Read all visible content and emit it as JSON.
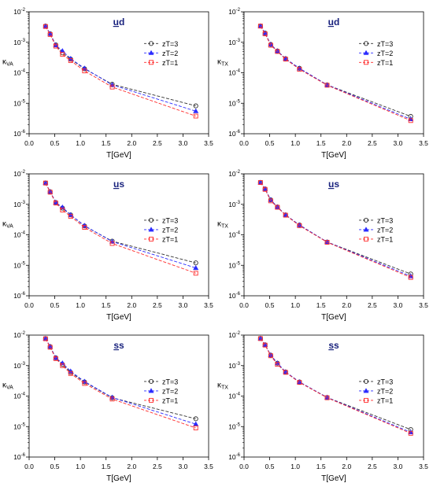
{
  "colors": {
    "zT3": "#333333",
    "zT2": "#2b2bff",
    "zT1": "#ff2b2b",
    "title": "#1a237e",
    "axis": "#000000"
  },
  "chart_data": [
    {
      "type": "line",
      "title": "ud",
      "title_underline": "u",
      "ylabel_main": "κ",
      "ylabel_sub": "VA",
      "xlabel": "T[GeV]",
      "xlim": [
        0,
        3.5
      ],
      "x_ticks": [
        "0.0",
        "0.5",
        "1.0",
        "1.5",
        "2.0",
        "2.5",
        "3.0",
        "3.5"
      ],
      "ylim_exp": [
        -6,
        -2
      ],
      "y_scale": "log",
      "legend_position": "upper-right-middle",
      "x": [
        0.32,
        0.41,
        0.52,
        0.65,
        0.81,
        1.08,
        1.62,
        3.25
      ],
      "series": [
        {
          "name": "zT=3",
          "marker": "circle",
          "values": [
            0.0034,
            0.0019,
            0.00082,
            0.00045,
            0.00028,
            0.000135,
            4.2e-05,
            8.2e-06
          ]
        },
        {
          "name": "zT=2",
          "marker": "triangle",
          "values": [
            0.0034,
            0.0019,
            0.0008,
            0.00052,
            0.00029,
            0.00014,
            4e-05,
            5.5e-06
          ]
        },
        {
          "name": "zT=1",
          "marker": "square",
          "values": [
            0.0033,
            0.0018,
            0.00075,
            0.0004,
            0.00025,
            0.000115,
            3.4e-05,
            3.8e-06
          ]
        }
      ]
    },
    {
      "type": "line",
      "title": "ud",
      "title_underline": "u",
      "ylabel_main": "κ",
      "ylabel_sub": "TX",
      "xlabel": "T[GeV]",
      "xlim": [
        0,
        3.5
      ],
      "x_ticks": [
        "0.0",
        "0.5",
        "1.0",
        "1.5",
        "2.0",
        "2.5",
        "3.0",
        "3.5"
      ],
      "ylim_exp": [
        -6,
        -2
      ],
      "y_scale": "log",
      "legend_position": "upper-right-middle",
      "x": [
        0.32,
        0.41,
        0.52,
        0.65,
        0.81,
        1.08,
        1.62,
        3.25
      ],
      "series": [
        {
          "name": "zT=3",
          "marker": "circle",
          "values": [
            0.0034,
            0.002,
            0.00085,
            0.00052,
            0.00029,
            0.00014,
            4e-05,
            3.7e-06
          ]
        },
        {
          "name": "zT=2",
          "marker": "triangle",
          "values": [
            0.0034,
            0.002,
            0.00085,
            0.00052,
            0.00029,
            0.00014,
            4e-05,
            3e-06
          ]
        },
        {
          "name": "zT=1",
          "marker": "square",
          "values": [
            0.0034,
            0.0019,
            0.0008,
            0.0005,
            0.00028,
            0.00013,
            3.9e-05,
            2.7e-06
          ]
        }
      ]
    },
    {
      "type": "line",
      "title": "us",
      "title_underline": "u",
      "ylabel_main": "κ",
      "ylabel_sub": "VA",
      "xlabel": "T[GeV]",
      "xlim": [
        0,
        3.5
      ],
      "x_ticks": [
        "0.0",
        "0.5",
        "1.0",
        "1.5",
        "2.0",
        "2.5",
        "3.0",
        "3.5"
      ],
      "ylim_exp": [
        -6,
        -2
      ],
      "y_scale": "log",
      "legend_position": "middle-right",
      "x": [
        0.32,
        0.41,
        0.52,
        0.65,
        0.81,
        1.08,
        1.62,
        3.25
      ],
      "series": [
        {
          "name": "zT=3",
          "marker": "circle",
          "values": [
            0.005,
            0.0026,
            0.00115,
            0.00075,
            0.00045,
            0.000195,
            6.2e-05,
            1.2e-05
          ]
        },
        {
          "name": "zT=2",
          "marker": "triangle",
          "values": [
            0.005,
            0.0026,
            0.00115,
            0.0008,
            0.00045,
            0.0002,
            6e-05,
            8.2e-06
          ]
        },
        {
          "name": "zT=1",
          "marker": "square",
          "values": [
            0.005,
            0.0025,
            0.0011,
            0.00065,
            0.0004,
            0.000175,
            5.2e-05,
            5.5e-06
          ]
        }
      ]
    },
    {
      "type": "line",
      "title": "us",
      "title_underline": "u",
      "ylabel_main": "κ",
      "ylabel_sub": "TX",
      "xlabel": "T[GeV]",
      "xlim": [
        0,
        3.5
      ],
      "x_ticks": [
        "0.0",
        "0.5",
        "1.0",
        "1.5",
        "2.0",
        "2.5",
        "3.0",
        "3.5"
      ],
      "ylim_exp": [
        -6,
        -2
      ],
      "y_scale": "log",
      "legend_position": "middle-right",
      "x": [
        0.32,
        0.41,
        0.52,
        0.65,
        0.81,
        1.08,
        1.62,
        3.25
      ],
      "series": [
        {
          "name": "zT=3",
          "marker": "circle",
          "values": [
            0.0052,
            0.0032,
            0.0014,
            0.00082,
            0.00045,
            0.00021,
            5.8e-05,
            5.2e-06
          ]
        },
        {
          "name": "zT=2",
          "marker": "triangle",
          "values": [
            0.0052,
            0.0032,
            0.0014,
            0.00082,
            0.00045,
            0.00021,
            5.8e-05,
            4.4e-06
          ]
        },
        {
          "name": "zT=1",
          "marker": "square",
          "values": [
            0.0052,
            0.0031,
            0.0013,
            0.0008,
            0.00044,
            0.0002,
            5.7e-05,
            4e-06
          ]
        }
      ]
    },
    {
      "type": "line",
      "title": "ss",
      "title_underline": "s",
      "ylabel_main": "κ",
      "ylabel_sub": "VA",
      "xlabel": "T[GeV]",
      "xlim": [
        0,
        3.5
      ],
      "x_ticks": [
        "0.0",
        "0.5",
        "1.0",
        "1.5",
        "2.0",
        "2.5",
        "3.0",
        "3.5"
      ],
      "ylim_exp": [
        -6,
        -2
      ],
      "y_scale": "log",
      "legend_position": "middle-right",
      "x": [
        0.32,
        0.41,
        0.52,
        0.65,
        0.81,
        1.08,
        1.62,
        3.25
      ],
      "series": [
        {
          "name": "zT=3",
          "marker": "circle",
          "values": [
            0.0077,
            0.0042,
            0.0018,
            0.0011,
            0.0006,
            0.00029,
            8.8e-05,
            1.8e-05
          ]
        },
        {
          "name": "zT=2",
          "marker": "triangle",
          "values": [
            0.0077,
            0.0042,
            0.0018,
            0.0012,
            0.00065,
            0.0003,
            9e-05,
            1.2e-05
          ]
        },
        {
          "name": "zT=1",
          "marker": "square",
          "values": [
            0.0076,
            0.004,
            0.0017,
            0.001,
            0.00055,
            0.00026,
            8e-05,
            9e-06
          ]
        }
      ]
    },
    {
      "type": "line",
      "title": "ss",
      "title_underline": "s",
      "ylabel_main": "κ",
      "ylabel_sub": "TX",
      "xlabel": "T[GeV]",
      "xlim": [
        0,
        3.5
      ],
      "x_ticks": [
        "0.0",
        "0.5",
        "1.0",
        "1.5",
        "2.0",
        "2.5",
        "3.0",
        "3.5"
      ],
      "ylim_exp": [
        -6,
        -2
      ],
      "y_scale": "log",
      "legend_position": "middle-right",
      "x": [
        0.32,
        0.41,
        0.52,
        0.65,
        0.81,
        1.08,
        1.62,
        3.25
      ],
      "series": [
        {
          "name": "zT=3",
          "marker": "circle",
          "values": [
            0.0078,
            0.0048,
            0.0022,
            0.0012,
            0.00062,
            0.00029,
            9e-05,
            8e-06
          ]
        },
        {
          "name": "zT=2",
          "marker": "triangle",
          "values": [
            0.0078,
            0.0048,
            0.0022,
            0.0012,
            0.00062,
            0.00029,
            9e-05,
            6.5e-06
          ]
        },
        {
          "name": "zT=1",
          "marker": "square",
          "values": [
            0.0077,
            0.0047,
            0.0021,
            0.0011,
            0.0006,
            0.00028,
            8.8e-05,
            6e-06
          ]
        }
      ]
    }
  ]
}
